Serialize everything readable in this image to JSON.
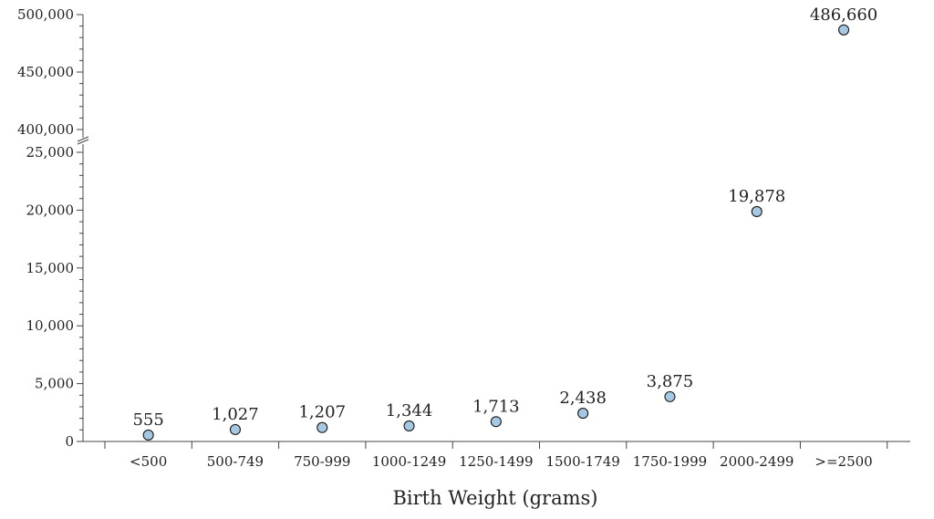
{
  "chart_data": {
    "type": "scatter",
    "title": "",
    "xlabel": "Birth Weight (grams)",
    "ylabel": "",
    "categories": [
      "<500",
      "500-749",
      "750-999",
      "1000-1249",
      "1250-1499",
      "1500-1749",
      "1750-1999",
      "2000-2499",
      ">=2500"
    ],
    "values": [
      555,
      1027,
      1207,
      1344,
      1713,
      2438,
      3875,
      19878,
      486660
    ],
    "value_labels": [
      "555",
      "1,027",
      "1,207",
      "1,344",
      "1,713",
      "2,438",
      "3,875",
      "19,878",
      "486,660"
    ],
    "ylim_lower": [
      0,
      25000
    ],
    "ylim_upper": [
      400000,
      500000
    ],
    "yticks_lower": [
      0,
      5000,
      10000,
      15000,
      20000,
      25000
    ],
    "yticks_lower_labels": [
      "0",
      "5,000",
      "10,000",
      "15,000",
      "20,000",
      "25,000"
    ],
    "yticks_upper": [
      400000,
      450000,
      500000
    ],
    "yticks_upper_labels": [
      "400,000",
      "450,000",
      "500,000"
    ],
    "axis_break": true,
    "grid": false,
    "marker_color": "#a6c8e2",
    "marker_edge_color": "#1a1a1a",
    "axis_color": "#444444"
  }
}
